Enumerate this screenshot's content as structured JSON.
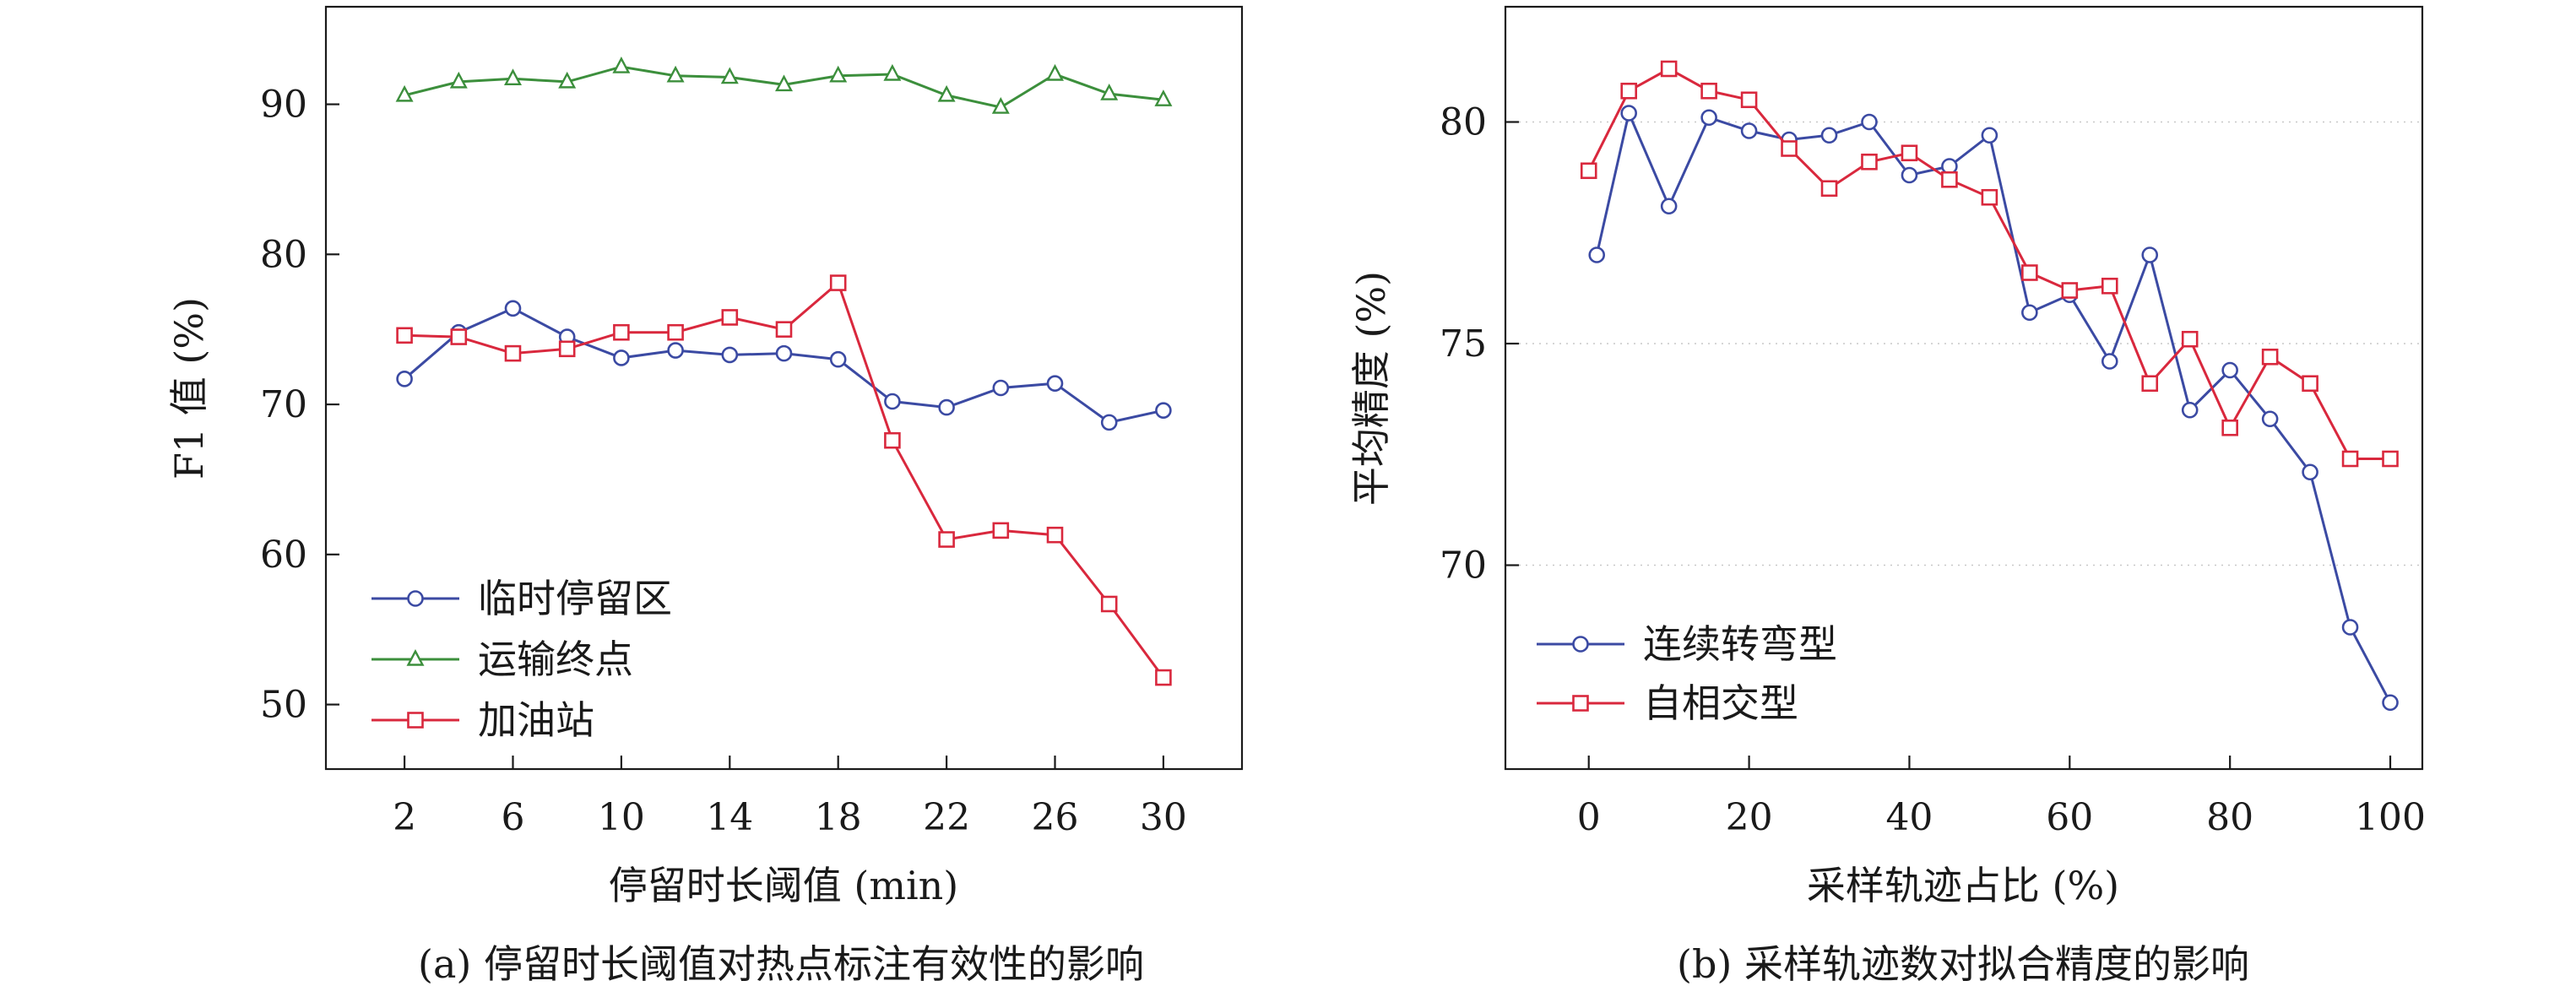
{
  "chart_data": [
    {
      "type": "line",
      "panel_caption": "(a) 停留时长阈值对热点标注有效性的影响",
      "xlabel": "停留时长阈值 (min)",
      "ylabel": "F1 值 (%)",
      "x": [
        2,
        4,
        6,
        8,
        10,
        12,
        14,
        16,
        18,
        20,
        22,
        24,
        26,
        28,
        30
      ],
      "xticks": [
        2,
        6,
        10,
        14,
        18,
        22,
        26,
        30
      ],
      "xlim": [
        -0.9,
        32.9
      ],
      "yticks": [
        50,
        60,
        70,
        80,
        90
      ],
      "ylim": [
        45.7,
        96.5
      ],
      "grid": false,
      "legend_position": "bottom-left",
      "series": [
        {
          "name": "临时停留区",
          "color": "#3b4aa3",
          "marker": "circle",
          "values": [
            71.7,
            74.8,
            76.4,
            74.5,
            73.1,
            73.6,
            73.3,
            73.4,
            73.0,
            70.2,
            69.8,
            71.1,
            71.4,
            68.8,
            69.6
          ]
        },
        {
          "name": "运输终点",
          "color": "#3c8f3c",
          "marker": "triangle",
          "values": [
            90.6,
            91.5,
            91.7,
            91.5,
            92.5,
            91.9,
            91.8,
            91.3,
            91.9,
            92.0,
            90.6,
            89.8,
            92.0,
            90.7,
            90.3
          ]
        },
        {
          "name": "加油站",
          "color": "#d9283d",
          "marker": "square",
          "values": [
            74.6,
            74.5,
            73.4,
            73.7,
            74.8,
            74.8,
            75.8,
            75.0,
            78.1,
            67.6,
            61.0,
            61.6,
            61.3,
            56.7,
            51.8
          ]
        }
      ]
    },
    {
      "type": "line",
      "panel_caption": "(b) 采样轨迹数对拟合精度的影响",
      "xlabel": "采样轨迹占比 (%)",
      "ylabel": "平均精度 (%)",
      "xticks": [
        0,
        20,
        40,
        60,
        80,
        100
      ],
      "xlim": [
        -10.4,
        104
      ],
      "yticks": [
        70,
        75,
        80
      ],
      "ylim": [
        65.4,
        82.6
      ],
      "grid": true,
      "legend_position": "bottom-left",
      "series": [
        {
          "name": "连续转弯型",
          "color": "#3b4aa3",
          "marker": "circle",
          "x": [
            1,
            5,
            10,
            15,
            20,
            25,
            30,
            35,
            40,
            45,
            50,
            55,
            60,
            65,
            70,
            75,
            80,
            85,
            90,
            95,
            100
          ],
          "values": [
            77.0,
            80.2,
            78.1,
            80.1,
            79.8,
            79.6,
            79.7,
            80.0,
            78.8,
            79.0,
            79.7,
            75.7,
            76.1,
            74.6,
            77.0,
            73.5,
            74.4,
            73.3,
            72.1,
            68.6,
            66.9
          ]
        },
        {
          "name": "自相交型",
          "color": "#d9283d",
          "marker": "square",
          "x": [
            0,
            5,
            10,
            15,
            20,
            25,
            30,
            35,
            40,
            45,
            50,
            55,
            60,
            65,
            70,
            75,
            80,
            85,
            90,
            95,
            100
          ],
          "values": [
            78.9,
            80.7,
            81.2,
            80.7,
            80.5,
            79.4,
            78.5,
            79.1,
            79.3,
            78.7,
            78.3,
            76.6,
            76.2,
            76.3,
            74.1,
            75.1,
            73.1,
            74.7,
            74.1,
            72.4,
            72.4
          ]
        }
      ]
    }
  ]
}
